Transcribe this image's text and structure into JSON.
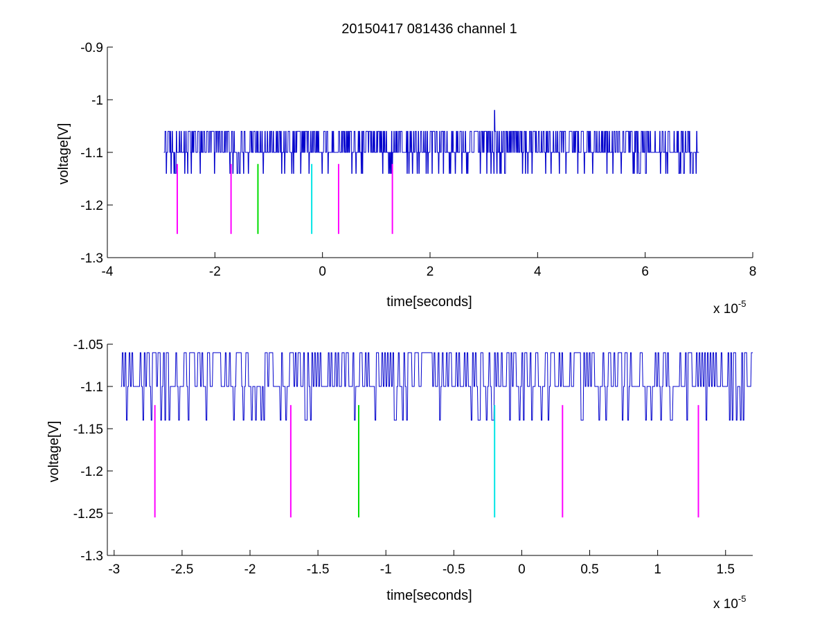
{
  "chart_data": [
    {
      "type": "line",
      "title": "20150417 081436 channel 1",
      "xlabel": "time[seconds]",
      "ylabel": "voltage[V]",
      "x_exponent_label": "x 10",
      "x_exponent": "-5",
      "xlim": [
        -4,
        8
      ],
      "ylim": [
        -1.3,
        -0.9
      ],
      "xticks": [
        -4,
        -2,
        0,
        2,
        4,
        6,
        8
      ],
      "xtick_labels": [
        "-4",
        "-2",
        "0",
        "2",
        "4",
        "6",
        "8"
      ],
      "yticks": [
        -1.3,
        -1.2,
        -1.1,
        -1.0,
        -0.9
      ],
      "ytick_labels": [
        "-1.3",
        "-1.2",
        "-1.1",
        "-1",
        "-0.9"
      ],
      "grid": false,
      "series": [
        {
          "color": "#0000cc",
          "x_range": [
            -2.95,
            7.0
          ],
          "baseline": -1.1,
          "levels": [
            -1.14,
            -1.1,
            -1.06,
            -1.02
          ],
          "spike": {
            "x": 3.2,
            "y": -1.02
          }
        }
      ],
      "markers": [
        {
          "x": -2.7,
          "y_range": [
            -1.255,
            -1.122
          ],
          "color": "#ff00ff"
        },
        {
          "x": -1.7,
          "y_range": [
            -1.255,
            -1.122
          ],
          "color": "#ff00ff"
        },
        {
          "x": -1.2,
          "y_range": [
            -1.255,
            -1.122
          ],
          "color": "#00dd00"
        },
        {
          "x": -0.2,
          "y_range": [
            -1.255,
            -1.122
          ],
          "color": "#00e5e5"
        },
        {
          "x": 0.3,
          "y_range": [
            -1.255,
            -1.122
          ],
          "color": "#ff00ff"
        },
        {
          "x": 1.3,
          "y_range": [
            -1.255,
            -1.122
          ],
          "color": "#ff00ff"
        }
      ]
    },
    {
      "type": "line",
      "title": "",
      "xlabel": "time[seconds]",
      "ylabel": "voltage[V]",
      "x_exponent_label": "x 10",
      "x_exponent": "-5",
      "xlim": [
        -3.05,
        1.7
      ],
      "ylim": [
        -1.3,
        -1.05
      ],
      "xticks": [
        -3,
        -2.5,
        -2,
        -1.5,
        -1,
        -0.5,
        0,
        0.5,
        1,
        1.5
      ],
      "xtick_labels": [
        "-3",
        "-2.5",
        "-2",
        "-1.5",
        "-1",
        "-0.5",
        "0",
        "0.5",
        "1",
        "1.5"
      ],
      "yticks": [
        -1.3,
        -1.25,
        -1.2,
        -1.15,
        -1.1,
        -1.05
      ],
      "ytick_labels": [
        "-1.3",
        "-1.25",
        "-1.2",
        "-1.15",
        "-1.1",
        "-1.05"
      ],
      "grid": false,
      "series": [
        {
          "color": "#0000cc",
          "x_range": [
            -2.95,
            1.7
          ],
          "baseline": -1.1,
          "levels": [
            -1.14,
            -1.1,
            -1.06
          ]
        }
      ],
      "markers": [
        {
          "x": -2.7,
          "y_range": [
            -1.255,
            -1.122
          ],
          "color": "#ff00ff"
        },
        {
          "x": -1.7,
          "y_range": [
            -1.255,
            -1.122
          ],
          "color": "#ff00ff"
        },
        {
          "x": -1.2,
          "y_range": [
            -1.255,
            -1.122
          ],
          "color": "#00dd00"
        },
        {
          "x": -0.2,
          "y_range": [
            -1.255,
            -1.122
          ],
          "color": "#00e5e5"
        },
        {
          "x": 0.3,
          "y_range": [
            -1.255,
            -1.122
          ],
          "color": "#ff00ff"
        },
        {
          "x": 1.3,
          "y_range": [
            -1.255,
            -1.122
          ],
          "color": "#ff00ff"
        }
      ]
    }
  ]
}
